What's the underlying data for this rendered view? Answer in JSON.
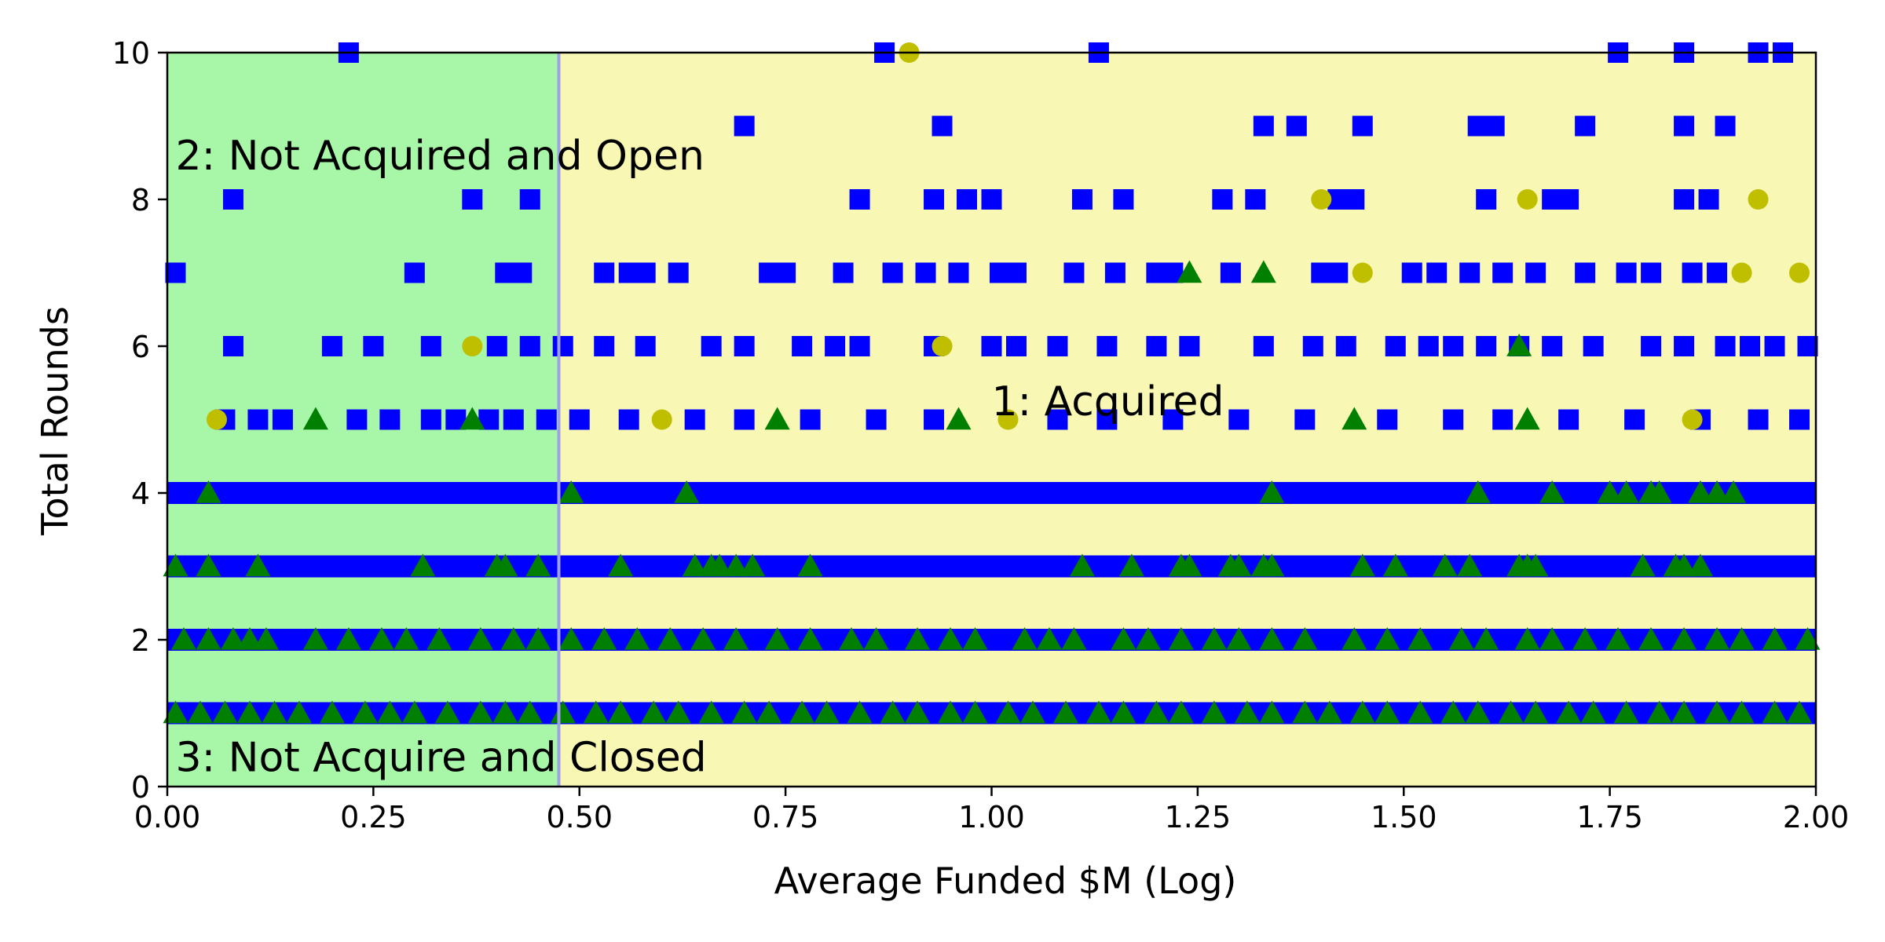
{
  "chart_data": {
    "type": "scatter",
    "title": "",
    "xlabel": "Average Funded $M (Log)",
    "ylabel": "Total Rounds",
    "xlim": [
      0,
      2
    ],
    "ylim": [
      0,
      10
    ],
    "x_ticks": [
      "0.00",
      "0.25",
      "0.50",
      "0.75",
      "1.00",
      "1.25",
      "1.50",
      "1.75",
      "2.00"
    ],
    "y_ticks": [
      "0",
      "2",
      "4",
      "6",
      "8",
      "10"
    ],
    "grid": false,
    "legend": "none",
    "decision_boundary_x": 0.475,
    "regions": [
      {
        "label": "2: Not Acquired and Open",
        "color": "#a8f7a8",
        "x_range": [
          0,
          0.475
        ]
      },
      {
        "label": "1: Acquired",
        "color": "#f8f8b4",
        "x_range": [
          0.475,
          2
        ]
      },
      {
        "label": "3: Not Acquire and Closed",
        "color": "#a8f7a8",
        "x_range": [
          0,
          0.475
        ]
      }
    ],
    "annotations": [
      {
        "text": "2: Not Acquired and Open",
        "x": 0.01,
        "y": 8.6
      },
      {
        "text": "1: Acquired",
        "x": 1.0,
        "y": 5.25
      },
      {
        "text": "3: Not Acquire and Closed",
        "x": 0.01,
        "y": 0.4
      }
    ],
    "series": [
      {
        "marker": "square",
        "color": "#0000ff",
        "points": [
          [
            0.22,
            10
          ],
          [
            0.87,
            10
          ],
          [
            1.13,
            10
          ],
          [
            1.76,
            10
          ],
          [
            1.84,
            10
          ],
          [
            1.93,
            10
          ],
          [
            1.96,
            10
          ],
          [
            0.7,
            9
          ],
          [
            0.94,
            9
          ],
          [
            1.33,
            9
          ],
          [
            1.37,
            9
          ],
          [
            1.45,
            9
          ],
          [
            1.59,
            9
          ],
          [
            1.61,
            9
          ],
          [
            1.72,
            9
          ],
          [
            1.84,
            9
          ],
          [
            1.89,
            9
          ],
          [
            0.08,
            8
          ],
          [
            0.37,
            8
          ],
          [
            0.44,
            8
          ],
          [
            0.84,
            8
          ],
          [
            0.93,
            8
          ],
          [
            0.97,
            8
          ],
          [
            1.0,
            8
          ],
          [
            1.11,
            8
          ],
          [
            1.16,
            8
          ],
          [
            1.28,
            8
          ],
          [
            1.32,
            8
          ],
          [
            1.42,
            8
          ],
          [
            1.44,
            8
          ],
          [
            1.6,
            8
          ],
          [
            1.68,
            8
          ],
          [
            1.7,
            8
          ],
          [
            1.84,
            8
          ],
          [
            1.87,
            8
          ],
          [
            0.01,
            7
          ],
          [
            0.3,
            7
          ],
          [
            0.41,
            7
          ],
          [
            0.43,
            7
          ],
          [
            0.53,
            7
          ],
          [
            0.56,
            7
          ],
          [
            0.58,
            7
          ],
          [
            0.62,
            7
          ],
          [
            0.73,
            7
          ],
          [
            0.75,
            7
          ],
          [
            0.82,
            7
          ],
          [
            0.88,
            7
          ],
          [
            0.92,
            7
          ],
          [
            0.96,
            7
          ],
          [
            1.01,
            7
          ],
          [
            1.03,
            7
          ],
          [
            1.1,
            7
          ],
          [
            1.15,
            7
          ],
          [
            1.2,
            7
          ],
          [
            1.22,
            7
          ],
          [
            1.29,
            7
          ],
          [
            1.4,
            7
          ],
          [
            1.42,
            7
          ],
          [
            1.51,
            7
          ],
          [
            1.54,
            7
          ],
          [
            1.58,
            7
          ],
          [
            1.62,
            7
          ],
          [
            1.66,
            7
          ],
          [
            1.72,
            7
          ],
          [
            1.77,
            7
          ],
          [
            1.8,
            7
          ],
          [
            1.85,
            7
          ],
          [
            1.88,
            7
          ],
          [
            0.08,
            6
          ],
          [
            0.2,
            6
          ],
          [
            0.25,
            6
          ],
          [
            0.32,
            6
          ],
          [
            0.4,
            6
          ],
          [
            0.44,
            6
          ],
          [
            0.48,
            6
          ],
          [
            0.53,
            6
          ],
          [
            0.58,
            6
          ],
          [
            0.66,
            6
          ],
          [
            0.7,
            6
          ],
          [
            0.77,
            6
          ],
          [
            0.81,
            6
          ],
          [
            0.84,
            6
          ],
          [
            0.93,
            6
          ],
          [
            1.0,
            6
          ],
          [
            1.03,
            6
          ],
          [
            1.08,
            6
          ],
          [
            1.14,
            6
          ],
          [
            1.2,
            6
          ],
          [
            1.24,
            6
          ],
          [
            1.33,
            6
          ],
          [
            1.39,
            6
          ],
          [
            1.43,
            6
          ],
          [
            1.49,
            6
          ],
          [
            1.53,
            6
          ],
          [
            1.56,
            6
          ],
          [
            1.6,
            6
          ],
          [
            1.64,
            6
          ],
          [
            1.68,
            6
          ],
          [
            1.73,
            6
          ],
          [
            1.8,
            6
          ],
          [
            1.84,
            6
          ],
          [
            1.89,
            6
          ],
          [
            1.92,
            6
          ],
          [
            1.95,
            6
          ],
          [
            1.99,
            6
          ],
          [
            0.07,
            5
          ],
          [
            0.11,
            5
          ],
          [
            0.14,
            5
          ],
          [
            0.23,
            5
          ],
          [
            0.27,
            5
          ],
          [
            0.32,
            5
          ],
          [
            0.35,
            5
          ],
          [
            0.39,
            5
          ],
          [
            0.42,
            5
          ],
          [
            0.46,
            5
          ],
          [
            0.5,
            5
          ],
          [
            0.56,
            5
          ],
          [
            0.64,
            5
          ],
          [
            0.7,
            5
          ],
          [
            0.78,
            5
          ],
          [
            0.86,
            5
          ],
          [
            0.93,
            5
          ],
          [
            1.08,
            5
          ],
          [
            1.14,
            5
          ],
          [
            1.22,
            5
          ],
          [
            1.3,
            5
          ],
          [
            1.38,
            5
          ],
          [
            1.48,
            5
          ],
          [
            1.56,
            5
          ],
          [
            1.62,
            5
          ],
          [
            1.7,
            5
          ],
          [
            1.78,
            5
          ],
          [
            1.86,
            5
          ],
          [
            1.93,
            5
          ],
          [
            1.98,
            5
          ]
        ]
      },
      {
        "marker": "triangle",
        "color": "#007f00",
        "points": [
          [
            0.18,
            5
          ],
          [
            0.37,
            5
          ],
          [
            0.74,
            5
          ],
          [
            0.96,
            5
          ],
          [
            1.44,
            5
          ],
          [
            1.65,
            5
          ],
          [
            1.64,
            6
          ],
          [
            1.24,
            7
          ],
          [
            1.33,
            7
          ],
          [
            0.05,
            4
          ],
          [
            0.49,
            4
          ],
          [
            0.63,
            4
          ],
          [
            1.34,
            4
          ],
          [
            1.59,
            4
          ],
          [
            1.68,
            4
          ],
          [
            1.75,
            4
          ],
          [
            1.77,
            4
          ],
          [
            1.8,
            4
          ],
          [
            1.81,
            4
          ],
          [
            1.86,
            4
          ],
          [
            1.88,
            4
          ],
          [
            1.9,
            4
          ],
          [
            0.01,
            3
          ],
          [
            0.05,
            3
          ],
          [
            0.11,
            3
          ],
          [
            0.31,
            3
          ],
          [
            0.4,
            3
          ],
          [
            0.41,
            3
          ],
          [
            0.45,
            3
          ],
          [
            0.55,
            3
          ],
          [
            0.64,
            3
          ],
          [
            0.66,
            3
          ],
          [
            0.67,
            3
          ],
          [
            0.69,
            3
          ],
          [
            0.71,
            3
          ],
          [
            0.78,
            3
          ],
          [
            1.11,
            3
          ],
          [
            1.17,
            3
          ],
          [
            1.23,
            3
          ],
          [
            1.24,
            3
          ],
          [
            1.29,
            3
          ],
          [
            1.3,
            3
          ],
          [
            1.33,
            3
          ],
          [
            1.34,
            3
          ],
          [
            1.45,
            3
          ],
          [
            1.49,
            3
          ],
          [
            1.55,
            3
          ],
          [
            1.58,
            3
          ],
          [
            1.64,
            3
          ],
          [
            1.65,
            3
          ],
          [
            1.66,
            3
          ],
          [
            1.79,
            3
          ],
          [
            1.83,
            3
          ],
          [
            1.84,
            3
          ],
          [
            1.86,
            3
          ],
          [
            0.02,
            2
          ],
          [
            0.05,
            2
          ],
          [
            0.08,
            2
          ],
          [
            0.1,
            2
          ],
          [
            0.12,
            2
          ],
          [
            0.18,
            2
          ],
          [
            0.22,
            2
          ],
          [
            0.26,
            2
          ],
          [
            0.29,
            2
          ],
          [
            0.33,
            2
          ],
          [
            0.38,
            2
          ],
          [
            0.42,
            2
          ],
          [
            0.45,
            2
          ],
          [
            0.49,
            2
          ],
          [
            0.53,
            2
          ],
          [
            0.57,
            2
          ],
          [
            0.61,
            2
          ],
          [
            0.65,
            2
          ],
          [
            0.69,
            2
          ],
          [
            0.74,
            2
          ],
          [
            0.78,
            2
          ],
          [
            0.83,
            2
          ],
          [
            0.86,
            2
          ],
          [
            0.91,
            2
          ],
          [
            0.95,
            2
          ],
          [
            0.98,
            2
          ],
          [
            1.04,
            2
          ],
          [
            1.07,
            2
          ],
          [
            1.1,
            2
          ],
          [
            1.16,
            2
          ],
          [
            1.19,
            2
          ],
          [
            1.23,
            2
          ],
          [
            1.27,
            2
          ],
          [
            1.3,
            2
          ],
          [
            1.34,
            2
          ],
          [
            1.38,
            2
          ],
          [
            1.44,
            2
          ],
          [
            1.48,
            2
          ],
          [
            1.52,
            2
          ],
          [
            1.57,
            2
          ],
          [
            1.6,
            2
          ],
          [
            1.65,
            2
          ],
          [
            1.68,
            2
          ],
          [
            1.72,
            2
          ],
          [
            1.76,
            2
          ],
          [
            1.8,
            2
          ],
          [
            1.84,
            2
          ],
          [
            1.88,
            2
          ],
          [
            1.91,
            2
          ],
          [
            1.95,
            2
          ],
          [
            1.99,
            2
          ],
          [
            0.01,
            1
          ],
          [
            0.04,
            1
          ],
          [
            0.07,
            1
          ],
          [
            0.1,
            1
          ],
          [
            0.13,
            1
          ],
          [
            0.16,
            1
          ],
          [
            0.2,
            1
          ],
          [
            0.24,
            1
          ],
          [
            0.27,
            1
          ],
          [
            0.3,
            1
          ],
          [
            0.34,
            1
          ],
          [
            0.38,
            1
          ],
          [
            0.41,
            1
          ],
          [
            0.44,
            1
          ],
          [
            0.48,
            1
          ],
          [
            0.52,
            1
          ],
          [
            0.55,
            1
          ],
          [
            0.59,
            1
          ],
          [
            0.62,
            1
          ],
          [
            0.66,
            1
          ],
          [
            0.7,
            1
          ],
          [
            0.73,
            1
          ],
          [
            0.77,
            1
          ],
          [
            0.8,
            1
          ],
          [
            0.84,
            1
          ],
          [
            0.88,
            1
          ],
          [
            0.91,
            1
          ],
          [
            0.95,
            1
          ],
          [
            0.98,
            1
          ],
          [
            1.02,
            1
          ],
          [
            1.05,
            1
          ],
          [
            1.09,
            1
          ],
          [
            1.13,
            1
          ],
          [
            1.16,
            1
          ],
          [
            1.2,
            1
          ],
          [
            1.23,
            1
          ],
          [
            1.27,
            1
          ],
          [
            1.31,
            1
          ],
          [
            1.34,
            1
          ],
          [
            1.38,
            1
          ],
          [
            1.41,
            1
          ],
          [
            1.45,
            1
          ],
          [
            1.48,
            1
          ],
          [
            1.52,
            1
          ],
          [
            1.56,
            1
          ],
          [
            1.59,
            1
          ],
          [
            1.63,
            1
          ],
          [
            1.66,
            1
          ],
          [
            1.7,
            1
          ],
          [
            1.73,
            1
          ],
          [
            1.77,
            1
          ],
          [
            1.81,
            1
          ],
          [
            1.84,
            1
          ],
          [
            1.88,
            1
          ],
          [
            1.91,
            1
          ],
          [
            1.95,
            1
          ],
          [
            1.98,
            1
          ]
        ]
      },
      {
        "marker": "circle",
        "color": "#bfbf00",
        "points": [
          [
            0.9,
            10
          ],
          [
            1.4,
            8
          ],
          [
            1.65,
            8
          ],
          [
            1.93,
            8
          ],
          [
            1.45,
            7
          ],
          [
            1.91,
            7
          ],
          [
            1.98,
            7
          ],
          [
            0.37,
            6
          ],
          [
            0.94,
            6
          ],
          [
            0.6,
            5
          ],
          [
            1.02,
            5
          ],
          [
            0.06,
            5
          ],
          [
            1.85,
            5
          ]
        ]
      }
    ],
    "bands": [
      {
        "y": 1,
        "x_range": [
          0,
          2
        ],
        "color": "#0000ff"
      },
      {
        "y": 2,
        "x_range": [
          0,
          2
        ],
        "color": "#0000ff"
      },
      {
        "y": 3,
        "x_range": [
          0,
          2
        ],
        "color": "#0000ff"
      },
      {
        "y": 4,
        "x_range": [
          0,
          2
        ],
        "color": "#0000ff"
      }
    ]
  }
}
